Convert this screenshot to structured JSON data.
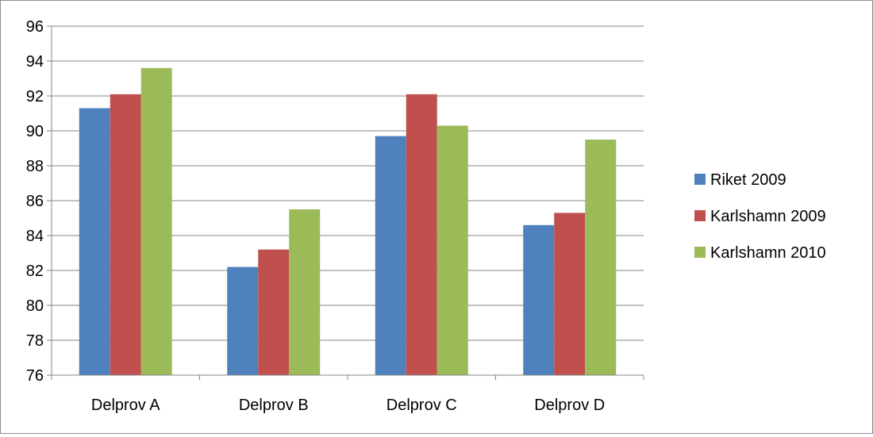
{
  "chart_data": {
    "type": "bar",
    "title": "",
    "xlabel": "",
    "ylabel": "",
    "categories": [
      "Delprov A",
      "Delprov B",
      "Delprov C",
      "Delprov D"
    ],
    "series": [
      {
        "name": "Riket 2009",
        "color": "#4F81BD",
        "values": [
          91.3,
          82.2,
          89.7,
          84.6
        ]
      },
      {
        "name": "Karlshamn 2009",
        "color": "#C0504D",
        "values": [
          92.1,
          83.2,
          92.1,
          85.3
        ]
      },
      {
        "name": "Karlshamn 2010",
        "color": "#9BBB59",
        "values": [
          93.6,
          85.5,
          90.3,
          89.5
        ]
      }
    ],
    "ylim": [
      76,
      96
    ],
    "yticks": [
      76,
      78,
      80,
      82,
      84,
      86,
      88,
      90,
      92,
      94,
      96
    ],
    "grid": true,
    "legend_position": "right"
  }
}
